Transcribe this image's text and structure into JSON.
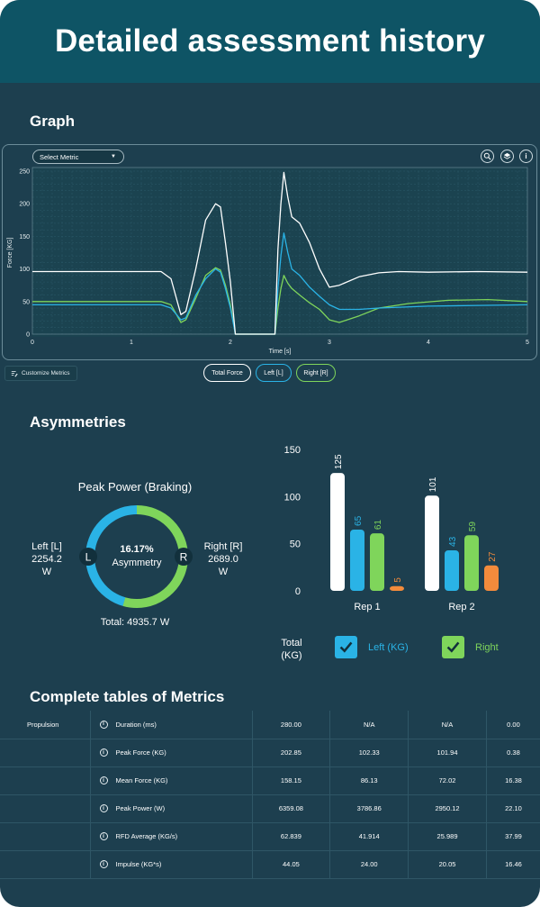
{
  "header": {
    "title": "Detailed assessment history"
  },
  "graph": {
    "section_title": "Graph",
    "select_metric": "Select Metric",
    "tools": [
      "zoom-icon",
      "layers-icon",
      "info-icon"
    ],
    "customize_label": "Customize Metrics",
    "legend": [
      {
        "label": "Total Force",
        "color": "#ffffff"
      },
      {
        "label": "Left [L]",
        "color": "#2ab3e6"
      },
      {
        "label": "Right [R]",
        "color": "#7fd55b"
      }
    ]
  },
  "chart_data": [
    {
      "type": "line",
      "xlabel": "Time [s]",
      "ylabel": "Force [KG]",
      "xlim": [
        0,
        5
      ],
      "ylim": [
        0,
        250
      ],
      "x_ticks": [
        0,
        1,
        2,
        3,
        4,
        5
      ],
      "y_ticks": [
        0,
        50,
        100,
        150,
        200,
        250
      ],
      "grid": true,
      "series": [
        {
          "name": "Total Force",
          "color": "#ffffff",
          "points": [
            [
              0,
              96
            ],
            [
              1.3,
              96
            ],
            [
              1.4,
              85
            ],
            [
              1.5,
              30
            ],
            [
              1.55,
              35
            ],
            [
              1.65,
              100
            ],
            [
              1.75,
              175
            ],
            [
              1.85,
              200
            ],
            [
              1.9,
              195
            ],
            [
              1.95,
              140
            ],
            [
              2.0,
              80
            ],
            [
              2.05,
              0
            ],
            [
              2.45,
              0
            ],
            [
              2.48,
              130
            ],
            [
              2.51,
              200
            ],
            [
              2.54,
              248
            ],
            [
              2.58,
              210
            ],
            [
              2.62,
              180
            ],
            [
              2.7,
              170
            ],
            [
              2.8,
              140
            ],
            [
              2.9,
              100
            ],
            [
              3.0,
              72
            ],
            [
              3.1,
              75
            ],
            [
              3.3,
              88
            ],
            [
              3.5,
              94
            ],
            [
              3.7,
              96
            ],
            [
              4.0,
              95
            ],
            [
              4.5,
              96
            ],
            [
              5.0,
              95
            ]
          ]
        },
        {
          "name": "Left [L]",
          "color": "#2ab3e6",
          "points": [
            [
              0,
              45
            ],
            [
              1.3,
              45
            ],
            [
              1.4,
              40
            ],
            [
              1.5,
              22
            ],
            [
              1.55,
              25
            ],
            [
              1.65,
              60
            ],
            [
              1.75,
              85
            ],
            [
              1.85,
              100
            ],
            [
              1.9,
              95
            ],
            [
              1.95,
              70
            ],
            [
              2.0,
              40
            ],
            [
              2.05,
              0
            ],
            [
              2.45,
              0
            ],
            [
              2.48,
              70
            ],
            [
              2.51,
              120
            ],
            [
              2.54,
              155
            ],
            [
              2.58,
              125
            ],
            [
              2.62,
              100
            ],
            [
              2.7,
              90
            ],
            [
              2.8,
              72
            ],
            [
              2.9,
              58
            ],
            [
              3.0,
              45
            ],
            [
              3.1,
              38
            ],
            [
              3.3,
              38
            ],
            [
              3.5,
              40
            ],
            [
              4.0,
              43
            ],
            [
              4.5,
              44
            ],
            [
              5.0,
              45
            ]
          ]
        },
        {
          "name": "Right [R]",
          "color": "#7fd55b",
          "points": [
            [
              0,
              50
            ],
            [
              1.3,
              50
            ],
            [
              1.4,
              45
            ],
            [
              1.5,
              18
            ],
            [
              1.55,
              22
            ],
            [
              1.65,
              55
            ],
            [
              1.75,
              90
            ],
            [
              1.85,
              102
            ],
            [
              1.9,
              98
            ],
            [
              1.95,
              75
            ],
            [
              2.0,
              45
            ],
            [
              2.05,
              0
            ],
            [
              2.45,
              0
            ],
            [
              2.48,
              40
            ],
            [
              2.51,
              70
            ],
            [
              2.54,
              90
            ],
            [
              2.58,
              78
            ],
            [
              2.62,
              70
            ],
            [
              2.7,
              60
            ],
            [
              2.8,
              48
            ],
            [
              2.9,
              38
            ],
            [
              3.0,
              22
            ],
            [
              3.1,
              18
            ],
            [
              3.3,
              28
            ],
            [
              3.5,
              40
            ],
            [
              3.8,
              47
            ],
            [
              4.2,
              52
            ],
            [
              4.6,
              53
            ],
            [
              5.0,
              50
            ]
          ]
        }
      ]
    },
    {
      "type": "bar",
      "categories": [
        "Rep 1",
        "Rep 2"
      ],
      "ylim": [
        0,
        150
      ],
      "y_ticks": [
        0,
        50,
        100,
        150
      ],
      "series": [
        {
          "name": "Total (KG)",
          "color": "#ffffff",
          "values": [
            125,
            101
          ]
        },
        {
          "name": "Left (KG)",
          "color": "#2ab3e6",
          "values": [
            65,
            43
          ]
        },
        {
          "name": "Right",
          "color": "#7fd55b",
          "values": [
            61,
            59
          ]
        },
        {
          "name": "",
          "color": "#f38b3c",
          "values": [
            5,
            27
          ]
        }
      ]
    }
  ],
  "asymmetries": {
    "section_title": "Asymmetries",
    "ring_title": "Peak Power (Braking)",
    "left_label": "Left [L]",
    "left_value": "2254.2",
    "left_unit": "W",
    "right_label": "Right [R]",
    "right_value": "2689.0",
    "right_unit": "W",
    "percent": "16.17%",
    "asym_label": "Asymmetry",
    "left_marker": "L",
    "right_marker": "R",
    "total": "Total: 4935.7 W",
    "left_fraction": 0.4567,
    "legend_total_line1": "Total",
    "legend_total_line2": "(KG)",
    "legend_left": "Left (KG)",
    "legend_right": "Right"
  },
  "metrics": {
    "section_title": "Complete tables of Metrics",
    "rows": [
      {
        "category": "Propulsion",
        "metric": "Duration (ms)",
        "values": [
          "280.00",
          "N/A",
          "N/A",
          "0.00"
        ]
      },
      {
        "category": "",
        "metric": "Peak Force (KG)",
        "values": [
          "202.85",
          "102.33",
          "101.94",
          "0.38"
        ]
      },
      {
        "category": "",
        "metric": "Mean Force (KG)",
        "values": [
          "158.15",
          "86.13",
          "72.02",
          "16.38"
        ]
      },
      {
        "category": "",
        "metric": "Peak Power (W)",
        "values": [
          "6359.08",
          "3786.86",
          "2950.12",
          "22.10"
        ]
      },
      {
        "category": "",
        "metric": "RFD Average (KG/s)",
        "values": [
          "62.839",
          "41.914",
          "25.989",
          "37.99"
        ]
      },
      {
        "category": "",
        "metric": "Impulse (KG*s)",
        "values": [
          "44.05",
          "24.00",
          "20.05",
          "16.46"
        ]
      }
    ]
  }
}
